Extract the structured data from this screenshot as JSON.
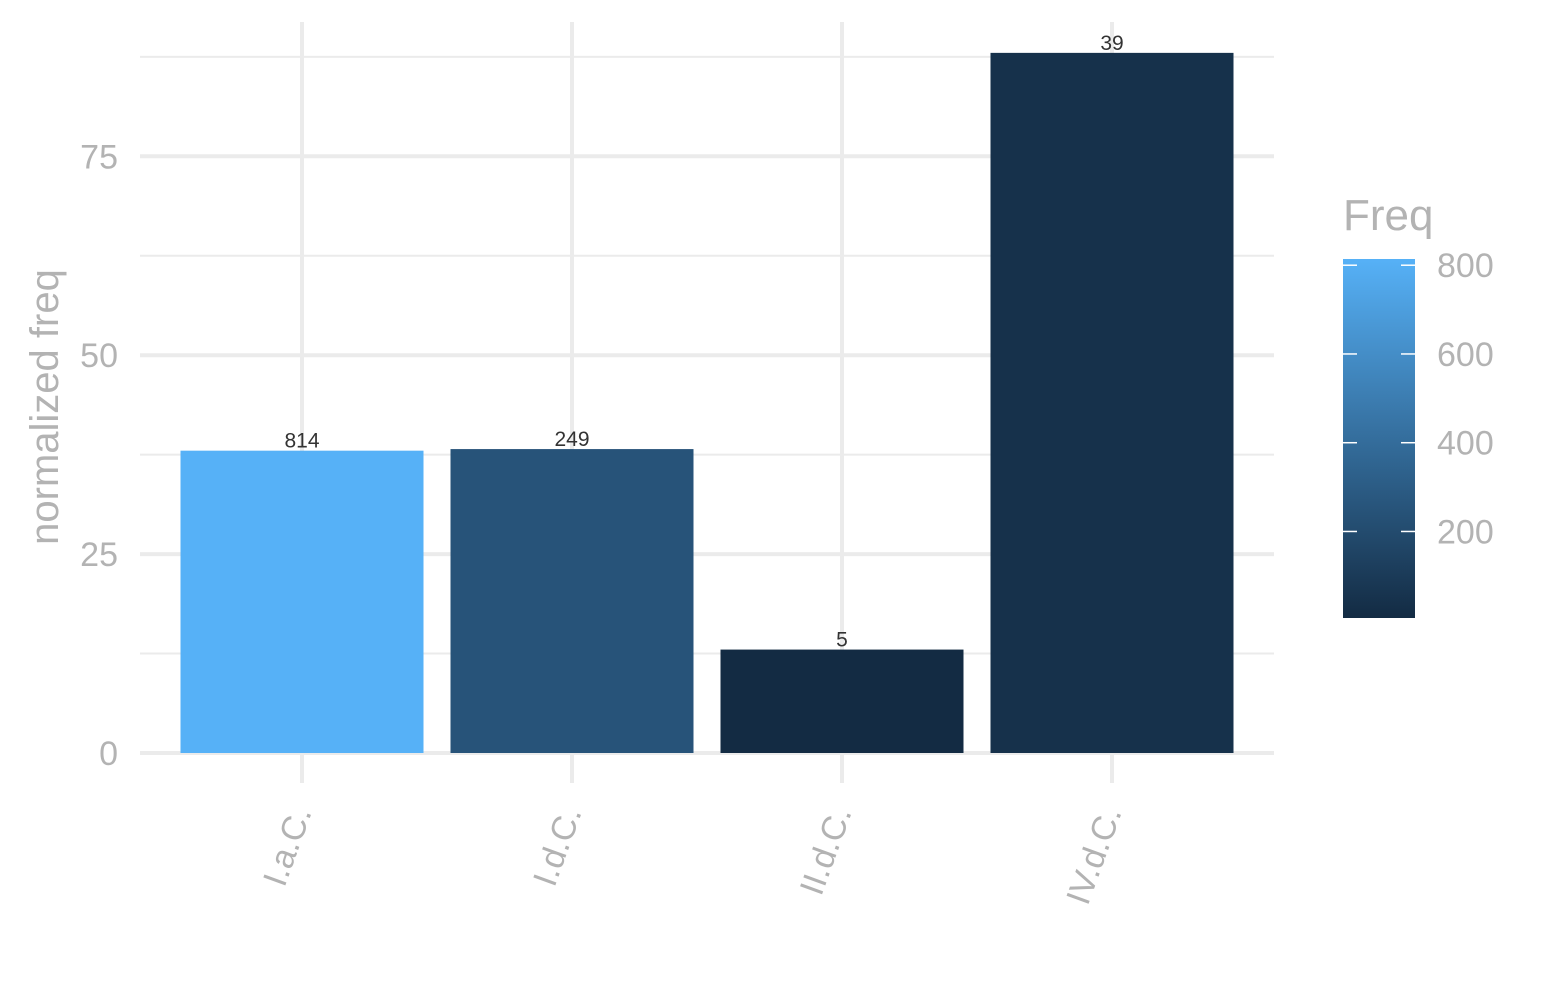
{
  "chart_data": {
    "type": "bar",
    "categories": [
      "I.a.C.",
      "I.d.C.",
      "II.d.C.",
      "IV.d.C."
    ],
    "values": [
      38,
      38.2,
      13,
      88
    ],
    "bar_labels": [
      "814",
      "249",
      "5",
      "39"
    ],
    "fill_values": [
      814,
      249,
      5,
      39
    ],
    "title": "",
    "xlabel": "",
    "ylabel": "normalized freq",
    "ylim": [
      -4,
      92
    ],
    "yticks": [
      0,
      25,
      50,
      75
    ],
    "grid": true,
    "legend": {
      "title": "Freq",
      "placement": "right",
      "range": [
        5,
        814
      ],
      "ticks": [
        200,
        400,
        600,
        800
      ],
      "color_low": "#132B43",
      "color_high": "#56B1F7"
    }
  }
}
